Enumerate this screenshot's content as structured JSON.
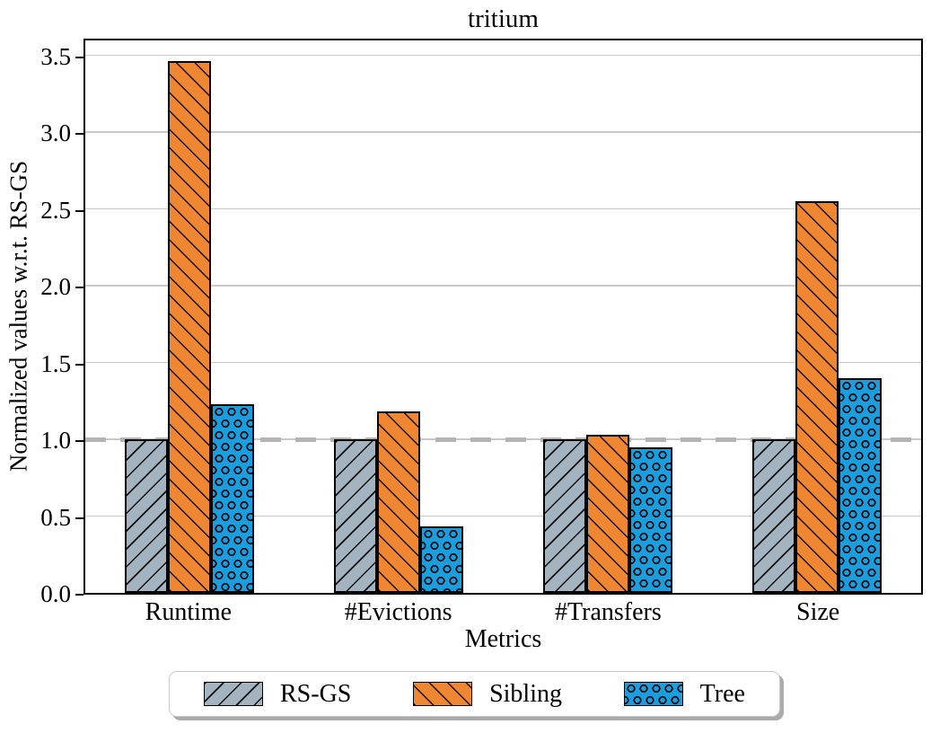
{
  "chart_data": {
    "type": "bar",
    "title": "tritium",
    "xlabel": "Metrics",
    "ylabel": "Normalized values w.r.t. RS-GS",
    "categories": [
      "Runtime",
      "#Evictions",
      "#Transfers",
      "Size"
    ],
    "series": [
      {
        "name": "RS-GS",
        "color": "#a3b4c0",
        "hatch": "/",
        "values": [
          1.0,
          1.0,
          1.0,
          1.0
        ]
      },
      {
        "name": "Sibling",
        "color": "#ef8632",
        "hatch": "\\",
        "values": [
          3.46,
          1.18,
          1.03,
          2.55
        ]
      },
      {
        "name": "Tree",
        "color": "#1b9edd",
        "hatch": "o",
        "values": [
          1.23,
          0.43,
          0.95,
          1.4
        ]
      }
    ],
    "yticks": [
      0.0,
      0.5,
      1.0,
      1.5,
      2.0,
      2.5,
      3.0,
      3.5
    ],
    "ylim": [
      0,
      3.62
    ],
    "grid": true,
    "reference_line": {
      "y": 1.0,
      "style": "dashed",
      "color": "#b4b4b4"
    },
    "legend_position": "bottom",
    "edge_color": "#000000",
    "gridline_color": "#c9c9c9"
  }
}
